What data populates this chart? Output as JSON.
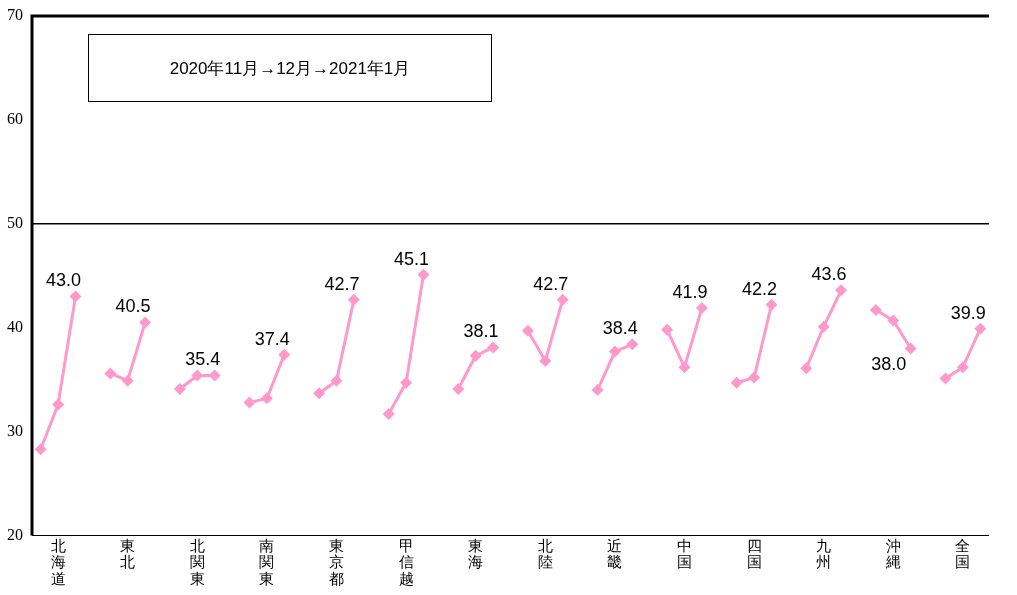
{
  "chart_data": {
    "type": "line",
    "categories": [
      null,
      "北海道",
      null,
      null,
      null,
      "東北",
      null,
      null,
      null,
      "北関東",
      null,
      null,
      null,
      "南関東",
      null,
      null,
      null,
      "東京都",
      null,
      null,
      null,
      "甲信越",
      null,
      null,
      null,
      "東海",
      null,
      null,
      null,
      "北陸",
      null,
      null,
      null,
      "近畿",
      null,
      null,
      null,
      "中国",
      null,
      null,
      null,
      "四国",
      null,
      null,
      null,
      "九州",
      null,
      null,
      null,
      "沖縄",
      null,
      null,
      null,
      "全国",
      null
    ],
    "series": [
      {
        "color": "#ff99cc",
        "values": [
          28.3,
          32.6,
          43.0,
          null,
          35.6,
          34.9,
          40.5,
          null,
          34.1,
          35.4,
          35.4,
          null,
          32.8,
          33.2,
          37.4,
          null,
          33.7,
          34.9,
          42.7,
          null,
          31.7,
          34.7,
          45.1,
          null,
          34.1,
          37.3,
          38.1,
          null,
          39.7,
          36.8,
          42.7,
          null,
          34.0,
          37.7,
          38.4,
          null,
          39.8,
          36.2,
          41.9,
          null,
          34.7,
          35.2,
          42.2,
          null,
          36.1,
          40.1,
          43.6,
          null,
          41.7,
          40.7,
          38.0,
          null,
          35.1,
          36.2,
          39.9
        ],
        "value_labels": [
          null,
          null,
          "43.0",
          null,
          null,
          null,
          "40.5",
          null,
          null,
          null,
          "35.4",
          null,
          null,
          null,
          "37.4",
          null,
          null,
          null,
          "42.7",
          null,
          null,
          null,
          "45.1",
          null,
          null,
          null,
          "38.1",
          null,
          null,
          null,
          "42.7",
          null,
          null,
          null,
          "38.4",
          null,
          null,
          null,
          "41.9",
          null,
          null,
          null,
          "42.2",
          null,
          null,
          null,
          "43.6",
          null,
          null,
          null,
          "38.0",
          null,
          null,
          null,
          "39.9"
        ]
      }
    ],
    "ylim": [
      20,
      70
    ],
    "yticks": [
      20,
      30,
      40,
      50,
      60,
      70
    ],
    "ref_lines": [
      {
        "axis": "y",
        "value": 50,
        "color": "#000000"
      }
    ],
    "annotations": [
      "2020年11月→12月→2021年1月"
    ],
    "marker": "diamond",
    "line_style": "solid",
    "grid": false,
    "legend": false
  }
}
